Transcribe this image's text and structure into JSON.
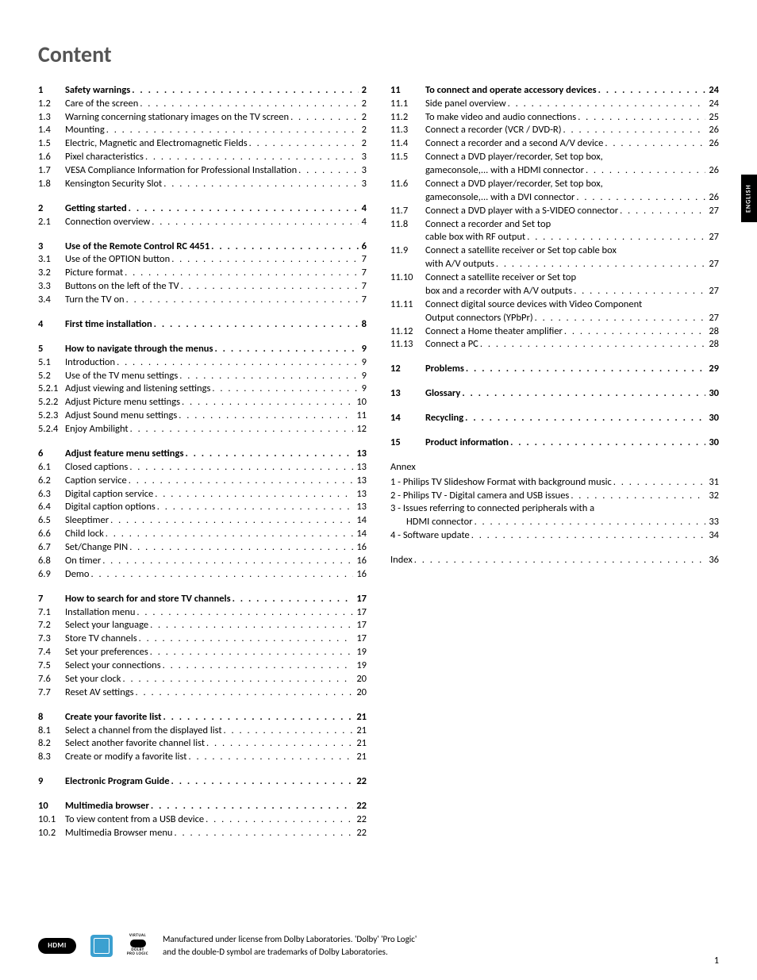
{
  "title": "Content",
  "side_tab": "ENGLISH",
  "page_number": "1",
  "footer_text_line1": "Manufactured under license from Dolby Laboratories. 'Dolby' 'Pro Logic'",
  "footer_text_line2": "and the double-D symbol are trademarks of Dolby Laboratories.",
  "logos": {
    "hdmi": "HDMI",
    "dolby_top": "VIRTUAL",
    "dolby_mid": "DOLBY",
    "dolby_bot": "PRO LOGIC"
  },
  "left": [
    {
      "group": true,
      "rows": [
        {
          "n": "1",
          "t": "Safety warnings",
          "p": "2",
          "b": true
        },
        {
          "n": "1.2",
          "t": "Care of the screen",
          "p": "2"
        },
        {
          "n": "1.3",
          "t": "Warning concerning stationary images on the TV screen",
          "p": "2"
        },
        {
          "n": "1.4",
          "t": "Mounting",
          "p": "2"
        },
        {
          "n": "1.5",
          "t": "Electric, Magnetic and Electromagnetic Fields",
          "p": "2"
        },
        {
          "n": "1.6",
          "t": "Pixel characteristics",
          "p": "3"
        },
        {
          "n": "1.7",
          "t": "VESA Compliance Information for Professional Installation",
          "p": "3"
        },
        {
          "n": "1.8",
          "t": "Kensington Security Slot",
          "p": "3"
        }
      ]
    },
    {
      "group": true,
      "rows": [
        {
          "n": "2",
          "t": "Getting started",
          "p": "4",
          "b": true
        },
        {
          "n": "2.1",
          "t": "Connection overview",
          "p": "4"
        }
      ]
    },
    {
      "group": true,
      "rows": [
        {
          "n": "3",
          "t": "Use of the Remote Control RC 4451",
          "p": "6",
          "b": true
        },
        {
          "n": "3.1",
          "t": "Use of the OPTION button",
          "p": "7"
        },
        {
          "n": "3.2",
          "t": "Picture format",
          "p": "7"
        },
        {
          "n": "3.3",
          "t": "Buttons on the left of the TV",
          "p": "7"
        },
        {
          "n": "3.4",
          "t": "Turn the TV on",
          "p": "7"
        }
      ]
    },
    {
      "group": true,
      "rows": [
        {
          "n": "4",
          "t": "First time installation",
          "p": "8",
          "b": true
        }
      ]
    },
    {
      "group": true,
      "rows": [
        {
          "n": "5",
          "t": "How to navigate through the menus",
          "p": "9",
          "b": true
        },
        {
          "n": "5.1",
          "t": "Introduction",
          "p": "9"
        },
        {
          "n": "5.2",
          "t": "Use of the TV menu settings",
          "p": "9"
        },
        {
          "n": "5.2.1",
          "t": "Adjust viewing and listening settings",
          "p": "9"
        },
        {
          "n": "5.2.2",
          "t": "Adjust Picture menu settings",
          "p": "10"
        },
        {
          "n": "5.2.3",
          "t": "Adjust Sound menu settings",
          "p": "11"
        },
        {
          "n": "5.2.4",
          "t": "Enjoy Ambilight",
          "p": "12"
        }
      ]
    },
    {
      "group": true,
      "rows": [
        {
          "n": "6",
          "t": "Adjust feature menu settings",
          "p": "13",
          "b": true
        },
        {
          "n": "6.1",
          "t": "Closed captions",
          "p": "13"
        },
        {
          "n": "6.2",
          "t": "Caption service",
          "p": "13"
        },
        {
          "n": "6.3",
          "t": "Digital caption service",
          "p": "13"
        },
        {
          "n": "6.4",
          "t": "Digital caption options",
          "p": "13"
        },
        {
          "n": "6.5",
          "t": "Sleeptimer",
          "p": "14"
        },
        {
          "n": "6.6",
          "t": "Child lock",
          "p": "14"
        },
        {
          "n": "6.7",
          "t": "Set/Change PIN",
          "p": "16"
        },
        {
          "n": "6.8",
          "t": "On timer",
          "p": "16"
        },
        {
          "n": "6.9",
          "t": "Demo",
          "p": "16"
        }
      ]
    },
    {
      "group": true,
      "rows": [
        {
          "n": "7",
          "t": "How to search for and store TV channels",
          "p": "17",
          "b": true
        },
        {
          "n": "7.1",
          "t": "Installation menu",
          "p": "17"
        },
        {
          "n": "7.2",
          "t": "Select your language",
          "p": "17"
        },
        {
          "n": "7.3",
          "t": "Store TV channels",
          "p": "17"
        },
        {
          "n": "7.4",
          "t": "Set your preferences",
          "p": "19"
        },
        {
          "n": "7.5",
          "t": "Select your connections",
          "p": "19"
        },
        {
          "n": "7.6",
          "t": "Set your clock",
          "p": "20"
        },
        {
          "n": "7.7",
          "t": "Reset AV settings",
          "p": "20"
        }
      ]
    },
    {
      "group": true,
      "rows": [
        {
          "n": "8",
          "t": "Create your favorite list",
          "p": "21",
          "b": true
        },
        {
          "n": "8.1",
          "t": "Select a channel from the displayed list",
          "p": "21"
        },
        {
          "n": "8.2",
          "t": "Select another favorite channel list",
          "p": "21"
        },
        {
          "n": "8.3",
          "t": "Create or modify a favorite list",
          "p": "21"
        }
      ]
    },
    {
      "group": true,
      "rows": [
        {
          "n": "9",
          "t": "Electronic Program Guide",
          "p": "22",
          "b": true
        }
      ]
    },
    {
      "group": true,
      "rows": [
        {
          "n": "10",
          "t": "Multimedia browser",
          "p": "22",
          "b": true
        },
        {
          "n": "10.1",
          "t": "To view content from a USB device",
          "p": "22"
        },
        {
          "n": "10.2",
          "t": "Multimedia Browser menu",
          "p": "22"
        }
      ]
    }
  ],
  "right": [
    {
      "group": true,
      "rows": [
        {
          "n": "11",
          "t": "To connect and operate accessory devices",
          "p": "24",
          "b": true
        },
        {
          "n": "11.1",
          "t": "Side panel overview",
          "p": "24"
        },
        {
          "n": "11.2",
          "t": "To make video and audio connections",
          "p": "25"
        },
        {
          "n": "11.3",
          "t": "Connect a recorder (VCR / DVD-R)",
          "p": "26"
        },
        {
          "n": "11.4",
          "t": "Connect a recorder and a second A/V device",
          "p": "26"
        },
        {
          "n": "11.5",
          "t": "Connect a DVD player/recorder, Set top box,",
          "nopage": true
        },
        {
          "cont": true,
          "t": "gameconsole,... with a HDMI connector",
          "p": "26"
        },
        {
          "n": "11.6",
          "t": "Connect a DVD player/recorder, Set top box,",
          "nopage": true
        },
        {
          "cont": true,
          "t": "gameconsole,... with a DVI connector",
          "p": "26"
        },
        {
          "n": "11.7",
          "t": "Connect a DVD player with a S-VIDEO connector",
          "p": "27"
        },
        {
          "n": "11.8",
          "t": "Connect a recorder and Set top",
          "nopage": true
        },
        {
          "cont": true,
          "t": "cable box with RF output",
          "p": "27"
        },
        {
          "n": "11.9",
          "t": "Connect a satellite receiver or Set top cable box",
          "nopage": true
        },
        {
          "cont": true,
          "t": "with A/V outputs",
          "p": "27"
        },
        {
          "n": "11.10",
          "t": "Connect a satellite receiver or Set top",
          "nopage": true
        },
        {
          "cont": true,
          "t": "box and a recorder with A/V outputs",
          "p": "27"
        },
        {
          "n": "11.11",
          "t": "Connect digital source devices with Video Component",
          "nopage": true
        },
        {
          "cont": true,
          "t": "Output connectors (YPbPr)",
          "p": "27"
        },
        {
          "n": "11.12",
          "t": "Connect a Home theater amplifier",
          "p": "28"
        },
        {
          "n": "11.13",
          "t": "Connect a PC",
          "p": "28"
        }
      ]
    },
    {
      "group": true,
      "rows": [
        {
          "n": "12",
          "t": "Problems",
          "p": "29",
          "b": true
        }
      ]
    },
    {
      "group": true,
      "rows": [
        {
          "n": "13",
          "t": "Glossary",
          "p": "30",
          "b": true
        }
      ]
    },
    {
      "group": true,
      "rows": [
        {
          "n": "14",
          "t": "Recycling",
          "p": "30",
          "b": true
        }
      ]
    },
    {
      "group": true,
      "rows": [
        {
          "n": "15",
          "t": "Product information",
          "p": "30",
          "b": true
        }
      ]
    }
  ],
  "annex": {
    "title": "Annex",
    "rows": [
      {
        "t": "1 - Philips TV Slideshow Format with background music",
        "p": "31"
      },
      {
        "t": "2 - Philips TV - Digital camera and USB issues",
        "p": "32"
      },
      {
        "t": "3 - Issues referring to connected peripherals with a",
        "nopage": true
      },
      {
        "t": "HDMI connector",
        "p": "33",
        "indent": true
      },
      {
        "t": "4 - Software update",
        "p": "34"
      }
    ],
    "index": {
      "t": "Index",
      "p": "36"
    }
  }
}
